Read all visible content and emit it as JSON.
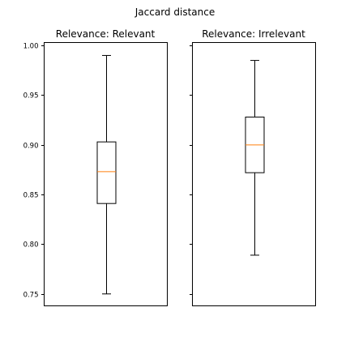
{
  "title": "Jaccard distance",
  "colors": {
    "median": "#ff7f0e",
    "box": "#000000",
    "background": "#ffffff"
  },
  "chart_data": {
    "type": "box",
    "title": "Jaccard distance",
    "ylim": [
      0.738,
      1.003
    ],
    "yticks": [
      0.75,
      0.8,
      0.85,
      0.9,
      0.95,
      1.0
    ],
    "ytick_labels": [
      "0.75",
      "0.80",
      "0.85",
      "0.90",
      "0.95",
      "1.00"
    ],
    "sharey": true,
    "grid": false,
    "panels": [
      {
        "subtitle": "Relevance: Relevant",
        "whisker_low": 0.75,
        "q1": 0.841,
        "median": 0.873,
        "q3": 0.903,
        "whisker_high": 0.99
      },
      {
        "subtitle": "Relevance: Irrelevant",
        "whisker_low": 0.789,
        "q1": 0.872,
        "median": 0.9,
        "q3": 0.928,
        "whisker_high": 0.985
      }
    ]
  }
}
